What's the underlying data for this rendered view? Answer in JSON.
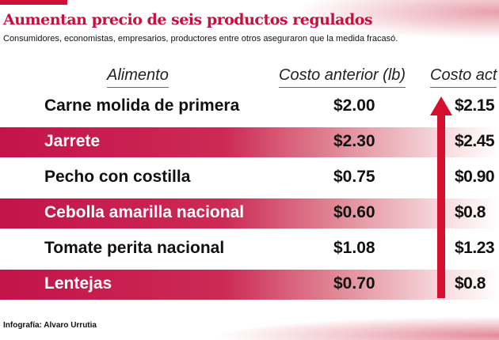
{
  "title": "Aumentan precio de seis productos regulados",
  "subtitle": "Consumidores, economistas, empresarios, productores entre otros aseguraron que la medida fracasó.",
  "headers": {
    "food": "Alimento",
    "previous": "Costo anterior (lb)",
    "current": "Costo act"
  },
  "rows": [
    {
      "name": "Carne molida de primera",
      "previous": "$2.00",
      "current": "$2.15"
    },
    {
      "name": "Jarrete",
      "previous": "$2.30",
      "current": "$2.45"
    },
    {
      "name": "Pecho con costilla",
      "previous": "$0.75",
      "current": "$0.90"
    },
    {
      "name": "Cebolla amarilla nacional",
      "previous": "$0.60",
      "current": "$0.8"
    },
    {
      "name": "Tomate perita nacional",
      "previous": "$1.08",
      "current": "$1.23"
    },
    {
      "name": "Lentejas",
      "previous": "$0.70",
      "current": "$0.8"
    }
  ],
  "credit": "Infografía: Alvaro Urrutia",
  "colors": {
    "accent": "#c8103e",
    "arrow": "#d5102f"
  }
}
